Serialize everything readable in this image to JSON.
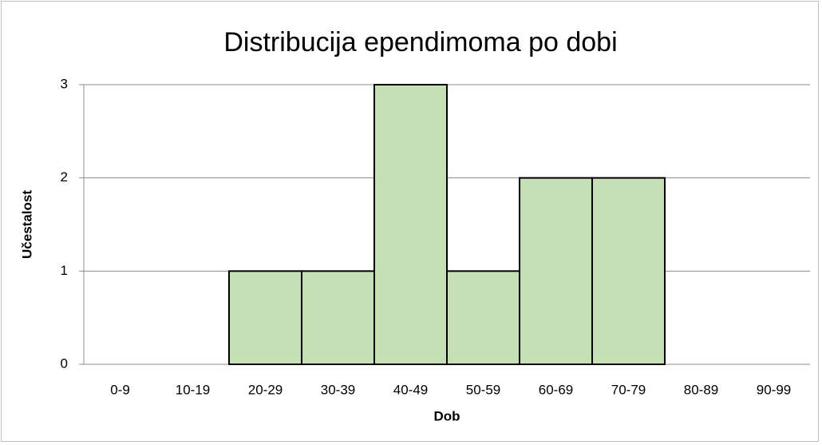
{
  "chart_data": {
    "type": "bar",
    "title": "Distribucija ependimoma po dobi",
    "x_label": "Dob",
    "y_label": "Učestalost",
    "categories": [
      "0-9",
      "10-19",
      "20-29",
      "30-39",
      "40-49",
      "50-59",
      "60-69",
      "70-79",
      "80-89",
      "90-99"
    ],
    "values": [
      0,
      0,
      1,
      1,
      3,
      1,
      2,
      2,
      0,
      0
    ],
    "color": "#c5e0b4",
    "ylim": [
      0,
      3
    ],
    "yticks": [
      0,
      1,
      2,
      3
    ],
    "grid": true
  }
}
